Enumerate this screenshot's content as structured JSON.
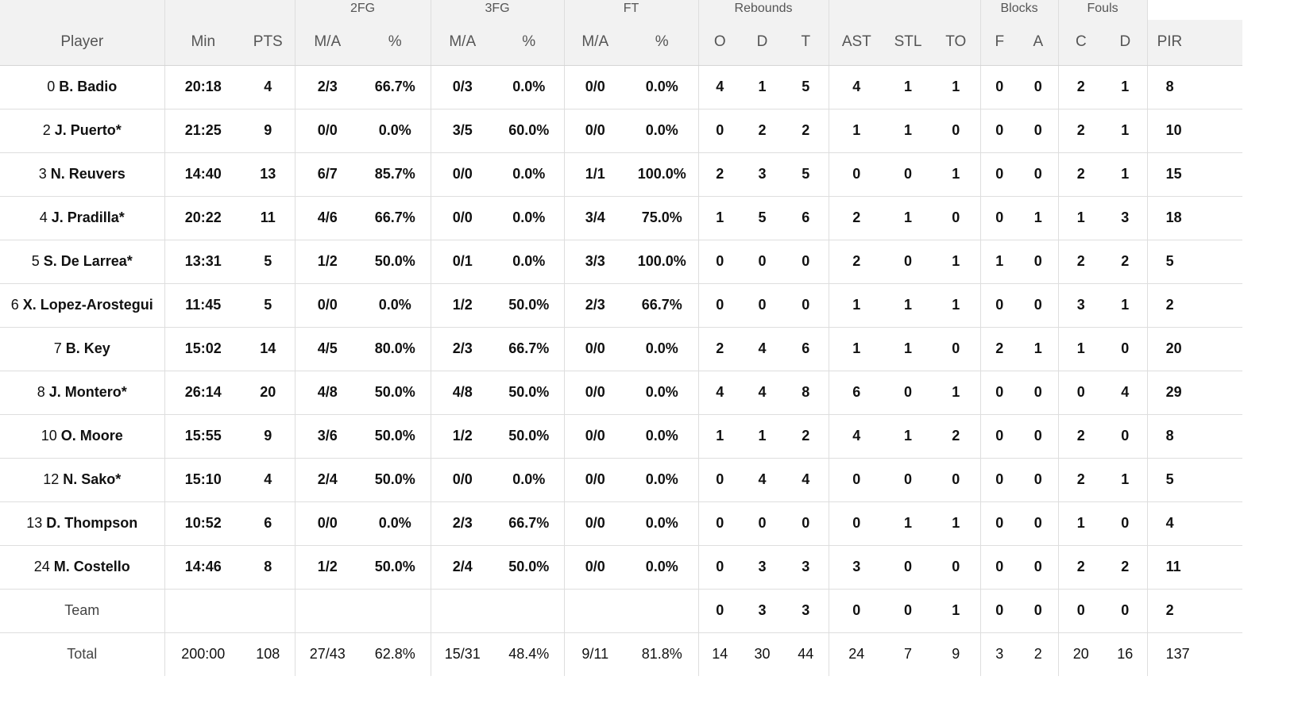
{
  "groups": {
    "g2fg": "2FG",
    "g3fg": "3FG",
    "gft": "FT",
    "greb": "Rebounds",
    "gblk": "Blocks",
    "gfoul": "Fouls"
  },
  "columns": {
    "player": "Player",
    "min": "Min",
    "pts": "PTS",
    "fg2ma": "M/A",
    "fg2p": "%",
    "fg3ma": "M/A",
    "fg3p": "%",
    "ftma": "M/A",
    "ftp": "%",
    "ro": "O",
    "rd": "D",
    "rt": "T",
    "ast": "AST",
    "stl": "STL",
    "to": "TO",
    "bf": "F",
    "ba": "A",
    "fc": "C",
    "fd": "D",
    "pir": "PIR"
  },
  "rows": [
    {
      "num": "0",
      "name": "B. Badio",
      "min": "20:18",
      "pts": "4",
      "fg2ma": "2/3",
      "fg2p": "66.7%",
      "fg3ma": "0/3",
      "fg3p": "0.0%",
      "ftma": "0/0",
      "ftp": "0.0%",
      "ro": "4",
      "rd": "1",
      "rt": "5",
      "ast": "4",
      "stl": "1",
      "to": "1",
      "bf": "0",
      "ba": "0",
      "fc": "2",
      "fd": "1",
      "pir": "8"
    },
    {
      "num": "2",
      "name": "J. Puerto*",
      "min": "21:25",
      "pts": "9",
      "fg2ma": "0/0",
      "fg2p": "0.0%",
      "fg3ma": "3/5",
      "fg3p": "60.0%",
      "ftma": "0/0",
      "ftp": "0.0%",
      "ro": "0",
      "rd": "2",
      "rt": "2",
      "ast": "1",
      "stl": "1",
      "to": "0",
      "bf": "0",
      "ba": "0",
      "fc": "2",
      "fd": "1",
      "pir": "10"
    },
    {
      "num": "3",
      "name": "N. Reuvers",
      "min": "14:40",
      "pts": "13",
      "fg2ma": "6/7",
      "fg2p": "85.7%",
      "fg3ma": "0/0",
      "fg3p": "0.0%",
      "ftma": "1/1",
      "ftp": "100.0%",
      "ro": "2",
      "rd": "3",
      "rt": "5",
      "ast": "0",
      "stl": "0",
      "to": "1",
      "bf": "0",
      "ba": "0",
      "fc": "2",
      "fd": "1",
      "pir": "15"
    },
    {
      "num": "4",
      "name": "J. Pradilla*",
      "min": "20:22",
      "pts": "11",
      "fg2ma": "4/6",
      "fg2p": "66.7%",
      "fg3ma": "0/0",
      "fg3p": "0.0%",
      "ftma": "3/4",
      "ftp": "75.0%",
      "ro": "1",
      "rd": "5",
      "rt": "6",
      "ast": "2",
      "stl": "1",
      "to": "0",
      "bf": "0",
      "ba": "1",
      "fc": "1",
      "fd": "3",
      "pir": "18"
    },
    {
      "num": "5",
      "name": "S. De Larrea*",
      "min": "13:31",
      "pts": "5",
      "fg2ma": "1/2",
      "fg2p": "50.0%",
      "fg3ma": "0/1",
      "fg3p": "0.0%",
      "ftma": "3/3",
      "ftp": "100.0%",
      "ro": "0",
      "rd": "0",
      "rt": "0",
      "ast": "2",
      "stl": "0",
      "to": "1",
      "bf": "1",
      "ba": "0",
      "fc": "2",
      "fd": "2",
      "pir": "5"
    },
    {
      "num": "6",
      "name": "X. Lopez-Arostegui",
      "min": "11:45",
      "pts": "5",
      "fg2ma": "0/0",
      "fg2p": "0.0%",
      "fg3ma": "1/2",
      "fg3p": "50.0%",
      "ftma": "2/3",
      "ftp": "66.7%",
      "ro": "0",
      "rd": "0",
      "rt": "0",
      "ast": "1",
      "stl": "1",
      "to": "1",
      "bf": "0",
      "ba": "0",
      "fc": "3",
      "fd": "1",
      "pir": "2"
    },
    {
      "num": "7",
      "name": "B. Key",
      "min": "15:02",
      "pts": "14",
      "fg2ma": "4/5",
      "fg2p": "80.0%",
      "fg3ma": "2/3",
      "fg3p": "66.7%",
      "ftma": "0/0",
      "ftp": "0.0%",
      "ro": "2",
      "rd": "4",
      "rt": "6",
      "ast": "1",
      "stl": "1",
      "to": "0",
      "bf": "2",
      "ba": "1",
      "fc": "1",
      "fd": "0",
      "pir": "20"
    },
    {
      "num": "8",
      "name": "J. Montero*",
      "min": "26:14",
      "pts": "20",
      "fg2ma": "4/8",
      "fg2p": "50.0%",
      "fg3ma": "4/8",
      "fg3p": "50.0%",
      "ftma": "0/0",
      "ftp": "0.0%",
      "ro": "4",
      "rd": "4",
      "rt": "8",
      "ast": "6",
      "stl": "0",
      "to": "1",
      "bf": "0",
      "ba": "0",
      "fc": "0",
      "fd": "4",
      "pir": "29"
    },
    {
      "num": "10",
      "name": "O. Moore",
      "min": "15:55",
      "pts": "9",
      "fg2ma": "3/6",
      "fg2p": "50.0%",
      "fg3ma": "1/2",
      "fg3p": "50.0%",
      "ftma": "0/0",
      "ftp": "0.0%",
      "ro": "1",
      "rd": "1",
      "rt": "2",
      "ast": "4",
      "stl": "1",
      "to": "2",
      "bf": "0",
      "ba": "0",
      "fc": "2",
      "fd": "0",
      "pir": "8"
    },
    {
      "num": "12",
      "name": "N. Sako*",
      "min": "15:10",
      "pts": "4",
      "fg2ma": "2/4",
      "fg2p": "50.0%",
      "fg3ma": "0/0",
      "fg3p": "0.0%",
      "ftma": "0/0",
      "ftp": "0.0%",
      "ro": "0",
      "rd": "4",
      "rt": "4",
      "ast": "0",
      "stl": "0",
      "to": "0",
      "bf": "0",
      "ba": "0",
      "fc": "2",
      "fd": "1",
      "pir": "5"
    },
    {
      "num": "13",
      "name": "D. Thompson",
      "min": "10:52",
      "pts": "6",
      "fg2ma": "0/0",
      "fg2p": "0.0%",
      "fg3ma": "2/3",
      "fg3p": "66.7%",
      "ftma": "0/0",
      "ftp": "0.0%",
      "ro": "0",
      "rd": "0",
      "rt": "0",
      "ast": "0",
      "stl": "1",
      "to": "1",
      "bf": "0",
      "ba": "0",
      "fc": "1",
      "fd": "0",
      "pir": "4"
    },
    {
      "num": "24",
      "name": "M. Costello",
      "min": "14:46",
      "pts": "8",
      "fg2ma": "1/2",
      "fg2p": "50.0%",
      "fg3ma": "2/4",
      "fg3p": "50.0%",
      "ftma": "0/0",
      "ftp": "0.0%",
      "ro": "0",
      "rd": "3",
      "rt": "3",
      "ast": "3",
      "stl": "0",
      "to": "0",
      "bf": "0",
      "ba": "0",
      "fc": "2",
      "fd": "2",
      "pir": "11"
    }
  ],
  "team": {
    "label": "Team",
    "ro": "0",
    "rd": "3",
    "rt": "3",
    "ast": "0",
    "stl": "0",
    "to": "1",
    "bf": "0",
    "ba": "0",
    "fc": "0",
    "fd": "0",
    "pir": "2"
  },
  "total": {
    "label": "Total",
    "min": "200:00",
    "pts": "108",
    "fg2ma": "27/43",
    "fg2p": "62.8%",
    "fg3ma": "15/31",
    "fg3p": "48.4%",
    "ftma": "9/11",
    "ftp": "81.8%",
    "ro": "14",
    "rd": "30",
    "rt": "44",
    "ast": "24",
    "stl": "7",
    "to": "9",
    "bf": "3",
    "ba": "2",
    "fc": "20",
    "fd": "16",
    "pir": "137"
  }
}
